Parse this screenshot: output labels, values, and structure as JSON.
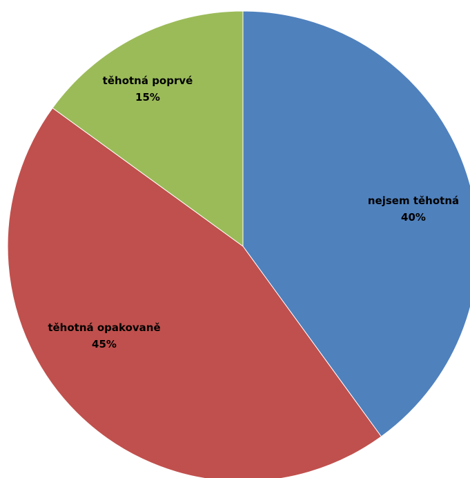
{
  "chart_data": {
    "type": "pie",
    "title": "",
    "start_angle_deg": 0,
    "direction": "clockwise",
    "slices": [
      {
        "label": "nejsem těhotná",
        "value": 40,
        "value_label": "40%",
        "color": "#4F81BD"
      },
      {
        "label": "těhotná opakovaně",
        "value": 45,
        "value_label": "45%",
        "color": "#C0504D"
      },
      {
        "label": "těhotná poprvé",
        "value": 15,
        "value_label": "15%",
        "color": "#9BBB59"
      }
    ]
  }
}
